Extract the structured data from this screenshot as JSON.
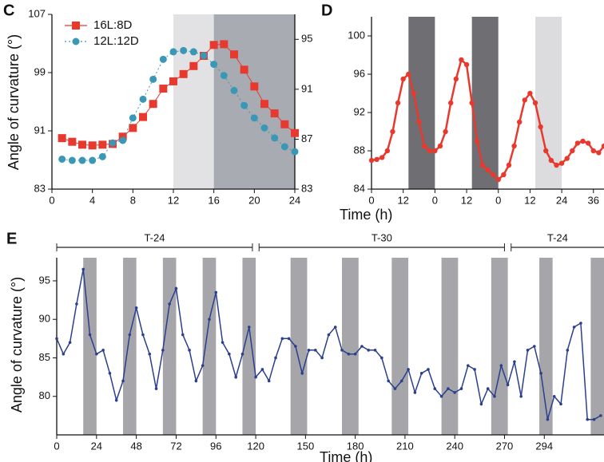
{
  "chart_data": [
    {
      "label": "C",
      "type": "scatter",
      "ylabel": "Angle of curvature (°)",
      "xlim": [
        0,
        24
      ],
      "xticks": [
        0,
        4,
        8,
        12,
        16,
        20,
        24
      ],
      "ylim": [
        83,
        107
      ],
      "yticks": [
        83,
        91,
        99,
        107
      ],
      "y2lim": [
        83,
        97
      ],
      "y2ticks": [
        83,
        87,
        91,
        95
      ],
      "legend": "upper left",
      "shading": [
        {
          "from": 12,
          "to": 16,
          "color": "#e2e2e4"
        },
        {
          "from": 16,
          "to": 24,
          "color": "#a9abb2"
        }
      ],
      "x": [
        1,
        2,
        3,
        4,
        5,
        6,
        7,
        8,
        9,
        10,
        11,
        12,
        13,
        14,
        15,
        16,
        17,
        18,
        19,
        20,
        21,
        22,
        23,
        24
      ],
      "series": [
        {
          "name": "16L:8D",
          "color": "#e8392e",
          "marker": "square",
          "linestyle": "solid",
          "values": [
            90.0,
            89.5,
            89.1,
            89.0,
            89.1,
            89.2,
            90.2,
            91.4,
            92.9,
            94.7,
            96.8,
            97.8,
            98.8,
            99.9,
            101.3,
            102.8,
            102.9,
            101.5,
            99.4,
            97.1,
            94.7,
            93.4,
            91.9,
            90.7
          ]
        },
        {
          "name": "12L:12D",
          "color": "#3a98b6",
          "marker": "circle",
          "linestyle": "dotted",
          "axis": "y2",
          "values": [
            85.4,
            85.3,
            85.3,
            85.3,
            85.6,
            86.7,
            86.9,
            88.7,
            90.2,
            91.8,
            93.4,
            94.0,
            94.1,
            94.0,
            93.7,
            93.0,
            92.1,
            90.9,
            89.7,
            88.7,
            87.9,
            87.1,
            86.4,
            86.0
          ]
        }
      ]
    },
    {
      "label": "D",
      "type": "line",
      "xlabel": "Time (h)",
      "xlim": [
        0,
        88
      ],
      "xticks": [
        0,
        12,
        {
          "value": 24,
          "label": "0"
        },
        {
          "value": 36,
          "label": "12"
        },
        {
          "value": 48,
          "label": "0"
        },
        {
          "value": 60,
          "label": "12"
        },
        {
          "value": 72,
          "label": "24"
        },
        {
          "value": 84,
          "label": "36"
        }
      ],
      "ylim": [
        84,
        102
      ],
      "yticks": [
        84,
        88,
        92,
        96,
        100
      ],
      "shading": [
        {
          "from": 14,
          "to": 24,
          "color": "#6f6f73"
        },
        {
          "from": 38,
          "to": 48,
          "color": "#6f6f73"
        },
        {
          "from": 62,
          "to": 72,
          "color": "#dcdcdf"
        }
      ],
      "x": [
        0,
        2,
        4,
        6,
        8,
        10,
        12,
        14,
        16,
        18,
        20,
        22,
        24,
        26,
        28,
        30,
        32,
        34,
        36,
        38,
        40,
        42,
        44,
        46,
        48,
        50,
        52,
        54,
        56,
        58,
        60,
        62,
        64,
        66,
        68,
        70,
        72,
        74,
        76,
        78,
        80,
        82,
        84,
        86,
        88
      ],
      "series": [
        {
          "color": "#e8392e",
          "marker": "circle",
          "linestyle": "solid",
          "values": [
            87,
            87.1,
            87.3,
            88,
            90,
            93,
            95.5,
            96,
            94,
            91,
            88.5,
            88,
            88,
            88.5,
            90,
            93,
            95.5,
            97.5,
            97,
            93,
            89,
            86.5,
            86,
            85.5,
            85,
            85.5,
            86.5,
            88.5,
            91,
            93.3,
            94,
            93,
            90.5,
            88,
            87,
            86.5,
            86.7,
            87.2,
            88,
            88.8,
            89,
            88.8,
            88,
            87.8,
            88.5
          ]
        }
      ]
    },
    {
      "label": "E",
      "type": "line",
      "ylabel": "Angle of curvature (°)",
      "xlabel": "Time (h)",
      "xlim": [
        0,
        330
      ],
      "xticks": [
        0,
        24,
        48,
        72,
        96,
        120,
        150,
        180,
        210,
        240,
        270,
        294
      ],
      "ylim": [
        75,
        98
      ],
      "yticks": [
        80,
        85,
        90,
        95
      ],
      "periods": [
        {
          "label": "T-24",
          "from": 0,
          "to": 118
        },
        {
          "label": "T-30",
          "from": 122,
          "to": 270
        },
        {
          "label": "T-24",
          "from": 274,
          "to": 335
        }
      ],
      "shading": [
        {
          "from": 16,
          "to": 24,
          "color": "#a6a6aa"
        },
        {
          "from": 40,
          "to": 48,
          "color": "#a6a6aa"
        },
        {
          "from": 64,
          "to": 72,
          "color": "#a6a6aa"
        },
        {
          "from": 88,
          "to": 96,
          "color": "#a6a6aa"
        },
        {
          "from": 112,
          "to": 120,
          "color": "#a6a6aa"
        },
        {
          "from": 141,
          "to": 151,
          "color": "#a6a6aa"
        },
        {
          "from": 172,
          "to": 182,
          "color": "#a6a6aa"
        },
        {
          "from": 202,
          "to": 212,
          "color": "#a6a6aa"
        },
        {
          "from": 232,
          "to": 242,
          "color": "#a6a6aa"
        },
        {
          "from": 262,
          "to": 272,
          "color": "#a6a6aa"
        },
        {
          "from": 291,
          "to": 299,
          "color": "#a6a6aa"
        },
        {
          "from": 322,
          "to": 330,
          "color": "#a6a6aa"
        }
      ],
      "x": [
        0,
        4,
        8,
        12,
        16,
        20,
        24,
        28,
        32,
        36,
        40,
        44,
        48,
        52,
        56,
        60,
        64,
        68,
        72,
        76,
        80,
        84,
        88,
        92,
        96,
        100,
        104,
        108,
        112,
        116,
        120,
        124,
        128,
        132,
        136,
        140,
        144,
        148,
        152,
        156,
        160,
        164,
        168,
        172,
        176,
        180,
        184,
        188,
        192,
        196,
        200,
        204,
        208,
        212,
        216,
        220,
        224,
        228,
        232,
        236,
        240,
        244,
        248,
        252,
        256,
        260,
        264,
        268,
        272,
        276,
        280,
        284,
        288,
        292,
        296,
        300,
        304,
        308,
        312,
        316,
        320,
        324,
        328
      ],
      "series": [
        {
          "color": "#2b3f8e",
          "marker": "dot",
          "linestyle": "solid",
          "values": [
            87.5,
            85.5,
            87,
            92,
            96.5,
            88,
            85.5,
            86,
            83,
            79.5,
            82,
            88,
            91.5,
            88,
            85.5,
            81,
            86,
            92,
            94,
            88,
            86,
            82,
            84,
            90,
            93.5,
            87,
            85.5,
            82.5,
            85.5,
            89,
            82.5,
            83.5,
            82,
            85,
            87.5,
            87.5,
            86.5,
            83,
            86,
            86,
            85,
            88,
            89,
            86,
            85.5,
            85.5,
            86.5,
            86,
            86,
            85,
            82,
            81,
            82,
            83.5,
            80.5,
            83,
            83.5,
            81,
            80,
            81,
            80.5,
            81,
            84,
            83.5,
            79,
            81,
            80,
            84,
            81.5,
            84.5,
            80,
            86,
            86.5,
            83,
            77,
            80,
            79,
            86,
            89,
            89.5,
            77,
            77,
            77.5
          ]
        }
      ]
    }
  ]
}
